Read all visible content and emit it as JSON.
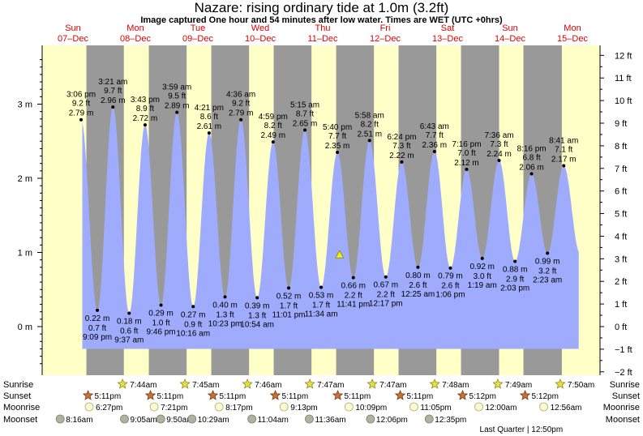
{
  "title": "Nazare: rising  ordinary tide at 1.0m (3.2ft)",
  "subtitle": "Image captured One hour and 54 minutes after low water. Times are WET (UTC +0hrs)",
  "days": [
    {
      "dow": "Sun",
      "date": "07–Dec"
    },
    {
      "dow": "Mon",
      "date": "08–Dec"
    },
    {
      "dow": "Tue",
      "date": "09–Dec"
    },
    {
      "dow": "Wed",
      "date": "10–Dec"
    },
    {
      "dow": "Thu",
      "date": "11–Dec"
    },
    {
      "dow": "Fri",
      "date": "12–Dec"
    },
    {
      "dow": "Sat",
      "date": "13–Dec"
    },
    {
      "dow": "Sun",
      "date": "14–Dec"
    },
    {
      "dow": "Mon",
      "date": "15–Dec"
    }
  ],
  "chart_data": {
    "type": "area",
    "left_axis": {
      "unit": "m",
      "ticks": [
        0,
        1,
        2,
        3
      ],
      "labels": [
        "0 m",
        "1 m",
        "2 m",
        "3 m"
      ],
      "range": [
        -0.6,
        3.75
      ]
    },
    "right_axis": {
      "unit": "ft",
      "ticks": [
        -2,
        -1,
        0,
        1,
        2,
        3,
        4,
        5,
        6,
        7,
        8,
        9,
        10,
        11,
        12
      ],
      "labels": [
        "−2 ft",
        "−1 ft",
        "0 ft",
        "1 ft",
        "2 ft",
        "3 ft",
        "4 ft",
        "5 ft",
        "6 ft",
        "7 ft",
        "8 ft",
        "9 ft",
        "10 ft",
        "11 ft",
        "12 ft"
      ]
    },
    "x_range_days": [
      -0.06,
      8.12
    ],
    "tide_range_days": [
      0.15,
      8.1
    ],
    "night_min_m": -0.3,
    "current": {
      "day": 4.27,
      "m": 0.97
    },
    "extremes": [
      {
        "type": "high",
        "day": 0.13,
        "m": 2.79,
        "time": "3:06 pm",
        "ft": "9.2 ft",
        "mtxt": "2.79 m"
      },
      {
        "type": "low",
        "day": 0.39,
        "m": 0.22,
        "time": "9:09 pm",
        "ft": "0.7 ft",
        "mtxt": "0.22 m"
      },
      {
        "type": "high",
        "day": 0.64,
        "m": 2.96,
        "time": "3:21 am",
        "ft": "9.7 ft",
        "mtxt": "2.96 m"
      },
      {
        "type": "low",
        "day": 0.9,
        "m": 0.18,
        "time": "9:37 am",
        "ft": "0.6 ft",
        "mtxt": "0.18 m"
      },
      {
        "type": "high",
        "day": 1.155,
        "m": 2.72,
        "time": "3:43 pm",
        "ft": "8.9 ft",
        "mtxt": "2.72 m"
      },
      {
        "type": "low",
        "day": 1.41,
        "m": 0.29,
        "time": "9:46 pm",
        "ft": "1.0 ft",
        "mtxt": "0.29 m"
      },
      {
        "type": "high",
        "day": 1.665,
        "m": 2.89,
        "time": "3:59 am",
        "ft": "9.5 ft",
        "mtxt": "2.89 m"
      },
      {
        "type": "low",
        "day": 1.925,
        "m": 0.27,
        "time": "10:16 am",
        "ft": "0.9 ft",
        "mtxt": "0.27 m"
      },
      {
        "type": "high",
        "day": 2.18,
        "m": 2.61,
        "time": "4:21 pm",
        "ft": "8.6 ft",
        "mtxt": "2.61 m"
      },
      {
        "type": "low",
        "day": 2.435,
        "m": 0.4,
        "time": "10:23 pm",
        "ft": "1.3 ft",
        "mtxt": "0.40 m"
      },
      {
        "type": "high",
        "day": 2.69,
        "m": 2.79,
        "time": "4:36 am",
        "ft": "9.2 ft",
        "mtxt": "2.79 m"
      },
      {
        "type": "low",
        "day": 2.95,
        "m": 0.39,
        "time": "10:54 am",
        "ft": "1.3 ft",
        "mtxt": "0.39 m"
      },
      {
        "type": "high",
        "day": 3.205,
        "m": 2.49,
        "time": "4:59 pm",
        "ft": "8.2 ft",
        "mtxt": "2.49 m"
      },
      {
        "type": "low",
        "day": 3.455,
        "m": 0.52,
        "time": "11:01 pm",
        "ft": "1.7 ft",
        "mtxt": "0.52 m"
      },
      {
        "type": "high",
        "day": 3.715,
        "m": 2.65,
        "time": "5:15 am",
        "ft": "8.7 ft",
        "mtxt": "2.65 m"
      },
      {
        "type": "low",
        "day": 3.975,
        "m": 0.53,
        "time": "11:34 am",
        "ft": "1.7 ft",
        "mtxt": "0.53 m"
      },
      {
        "type": "high",
        "day": 4.235,
        "m": 2.35,
        "time": "5:40 pm",
        "ft": "7.7 ft",
        "mtxt": "2.35 m"
      },
      {
        "type": "low",
        "day": 4.49,
        "m": 0.66,
        "time": "11:41 pm",
        "ft": "2.2 ft",
        "mtxt": "0.66 m"
      },
      {
        "type": "high",
        "day": 4.75,
        "m": 2.51,
        "time": "5:58 am",
        "ft": "8.2 ft",
        "mtxt": "2.51 m"
      },
      {
        "type": "low",
        "day": 5.01,
        "m": 0.67,
        "time": "12:17 pm",
        "ft": "2.2 ft",
        "mtxt": "0.67 m"
      },
      {
        "type": "high",
        "day": 5.265,
        "m": 2.22,
        "time": "6:24 pm",
        "ft": "7.3 ft",
        "mtxt": "2.22 m"
      },
      {
        "type": "low",
        "day": 5.525,
        "m": 0.8,
        "time": "12:25 am",
        "ft": "2.6 ft",
        "mtxt": "0.80 m"
      },
      {
        "type": "high",
        "day": 5.79,
        "m": 2.36,
        "time": "6:43 am",
        "ft": "7.7 ft",
        "mtxt": "2.36 m"
      },
      {
        "type": "low",
        "day": 6.045,
        "m": 0.79,
        "time": "1:06 pm",
        "ft": "2.6 ft",
        "mtxt": "0.79 m"
      },
      {
        "type": "high",
        "day": 6.305,
        "m": 2.12,
        "time": "7:16 pm",
        "ft": "7.0 ft",
        "mtxt": "2.12 m"
      },
      {
        "type": "low",
        "day": 6.555,
        "m": 0.92,
        "time": "1:19 am",
        "ft": "3.0 ft",
        "mtxt": "0.92 m"
      },
      {
        "type": "high",
        "day": 6.825,
        "m": 2.24,
        "time": "7:36 am",
        "ft": "7.3 ft",
        "mtxt": "2.24 m"
      },
      {
        "type": "low",
        "day": 7.08,
        "m": 0.88,
        "time": "2:03 pm",
        "ft": "2.9 ft",
        "mtxt": "0.88 m"
      },
      {
        "type": "high",
        "day": 7.345,
        "m": 2.06,
        "time": "8:16 pm",
        "ft": "6.8 ft",
        "mtxt": "2.06 m"
      },
      {
        "type": "low",
        "day": 7.6,
        "m": 0.99,
        "time": "2:23 am",
        "ft": "3.2 ft",
        "mtxt": "0.99 m"
      },
      {
        "type": "high",
        "day": 7.86,
        "m": 2.17,
        "time": "8:41 am",
        "ft": "7.1 ft",
        "mtxt": "2.17 m"
      }
    ],
    "nights": [
      {
        "set": 0.215,
        "rise": 0.815
      },
      {
        "set": 1.215,
        "rise": 1.82
      },
      {
        "set": 2.215,
        "rise": 2.82
      },
      {
        "set": 3.215,
        "rise": 3.82
      },
      {
        "set": 4.215,
        "rise": 4.82
      },
      {
        "set": 5.215,
        "rise": 5.82
      },
      {
        "set": 6.215,
        "rise": 6.825
      },
      {
        "set": 7.215,
        "rise": 7.83
      }
    ]
  },
  "events": {
    "labels": {
      "sunrise": "Sunrise",
      "sunset": "Sunset",
      "moonrise": "Moonrise",
      "moonset": "Moonset"
    },
    "sunrise": [
      {
        "day": 0.82,
        "time": "7:44am"
      },
      {
        "day": 1.82,
        "time": "7:45am"
      },
      {
        "day": 2.82,
        "time": "7:46am"
      },
      {
        "day": 3.82,
        "time": "7:47am"
      },
      {
        "day": 4.82,
        "time": "7:47am"
      },
      {
        "day": 5.82,
        "time": "7:48am"
      },
      {
        "day": 6.83,
        "time": "7:49am"
      },
      {
        "day": 7.83,
        "time": "7:50am"
      }
    ],
    "sunset": [
      {
        "day": 0.215,
        "time": "5:11pm"
      },
      {
        "day": 1.215,
        "time": "5:11pm"
      },
      {
        "day": 2.215,
        "time": "5:11pm"
      },
      {
        "day": 3.215,
        "time": "5:11pm"
      },
      {
        "day": 4.215,
        "time": "5:11pm"
      },
      {
        "day": 5.215,
        "time": "5:11pm"
      },
      {
        "day": 6.215,
        "time": "5:12pm"
      },
      {
        "day": 7.215,
        "time": "5:12pm"
      }
    ],
    "moonrise": [
      {
        "day": 0.26,
        "time": "6:27pm"
      },
      {
        "day": 1.3,
        "time": "7:21pm"
      },
      {
        "day": 2.34,
        "time": "8:17pm"
      },
      {
        "day": 3.38,
        "time": "9:13pm"
      },
      {
        "day": 4.42,
        "time": "10:09pm"
      },
      {
        "day": 5.46,
        "time": "11:05pm"
      },
      {
        "day": 6.5,
        "time": "12:00am"
      },
      {
        "day": 7.54,
        "time": "12:56am"
      }
    ],
    "moonset": [
      {
        "day": -0.01,
        "time": "8:16am"
      },
      {
        "day": 1.02,
        "time": "9:05am"
      },
      {
        "day": 1.6,
        "time": "9:50am"
      },
      {
        "day": 2.1,
        "time": "10:29am"
      },
      {
        "day": 3.06,
        "time": "11:04am"
      },
      {
        "day": 3.98,
        "time": "11:36am"
      },
      {
        "day": 4.96,
        "time": "12:06pm"
      },
      {
        "day": 5.9,
        "time": "12:35pm"
      }
    ],
    "phase": {
      "day": 7.18,
      "text": "Last Quarter | 12:50pm"
    }
  },
  "colors": {
    "day_bg": "#ffffc8",
    "night_bg": "#999999",
    "water": "#9fabfd",
    "day_label": "#dd0000",
    "current_marker": "#eeee22"
  }
}
